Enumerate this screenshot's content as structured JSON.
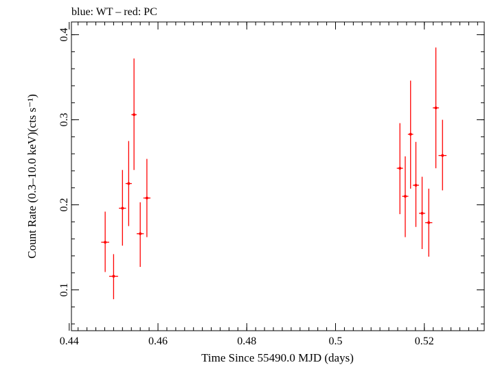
{
  "chart_data": {
    "type": "scatter",
    "title": "blue: WT – red: PC",
    "xlabel": "Time Since 55490.0 MJD (days)",
    "ylabel": "Count Rate (0.3–10.0 keV)(cts s⁻¹)",
    "xlim": [
      0.4405,
      0.5335
    ],
    "ylim": [
      0.052,
      0.415
    ],
    "xticks": [
      0.44,
      0.46,
      0.48,
      0.5,
      0.52
    ],
    "xtick_labels": [
      "0.44",
      "0.46",
      "0.48",
      "0.5",
      "0.52"
    ],
    "yticks": [
      0.1,
      0.2,
      0.3,
      0.4
    ],
    "ytick_labels": [
      "0.1",
      "0.2",
      "0.3",
      "0.4"
    ],
    "grid": false,
    "legend": "none",
    "series": [
      {
        "color": "#ff0000",
        "points": [
          {
            "x": 0.4481,
            "xerr": 0.0009,
            "y": 0.156,
            "ylo": 0.121,
            "yhi": 0.192
          },
          {
            "x": 0.45,
            "xerr": 0.001,
            "y": 0.116,
            "ylo": 0.089,
            "yhi": 0.142
          },
          {
            "x": 0.452,
            "xerr": 0.0008,
            "y": 0.196,
            "ylo": 0.152,
            "yhi": 0.241
          },
          {
            "x": 0.4534,
            "xerr": 0.0007,
            "y": 0.225,
            "ylo": 0.175,
            "yhi": 0.275
          },
          {
            "x": 0.4546,
            "xerr": 0.0006,
            "y": 0.306,
            "ylo": 0.241,
            "yhi": 0.372
          },
          {
            "x": 0.456,
            "xerr": 0.0008,
            "y": 0.166,
            "ylo": 0.127,
            "yhi": 0.203
          },
          {
            "x": 0.4575,
            "xerr": 0.0008,
            "y": 0.208,
            "ylo": 0.162,
            "yhi": 0.254
          },
          {
            "x": 0.5145,
            "xerr": 0.0007,
            "y": 0.243,
            "ylo": 0.189,
            "yhi": 0.296
          },
          {
            "x": 0.5157,
            "xerr": 0.0007,
            "y": 0.21,
            "ylo": 0.162,
            "yhi": 0.257
          },
          {
            "x": 0.5169,
            "xerr": 0.0006,
            "y": 0.283,
            "ylo": 0.219,
            "yhi": 0.346
          },
          {
            "x": 0.5181,
            "xerr": 0.0007,
            "y": 0.223,
            "ylo": 0.174,
            "yhi": 0.274
          },
          {
            "x": 0.5195,
            "xerr": 0.0007,
            "y": 0.19,
            "ylo": 0.148,
            "yhi": 0.233
          },
          {
            "x": 0.521,
            "xerr": 0.0008,
            "y": 0.179,
            "ylo": 0.139,
            "yhi": 0.219
          },
          {
            "x": 0.5226,
            "xerr": 0.0007,
            "y": 0.314,
            "ylo": 0.243,
            "yhi": 0.385
          },
          {
            "x": 0.5241,
            "xerr": 0.0009,
            "y": 0.258,
            "ylo": 0.217,
            "yhi": 0.3
          }
        ]
      }
    ]
  }
}
